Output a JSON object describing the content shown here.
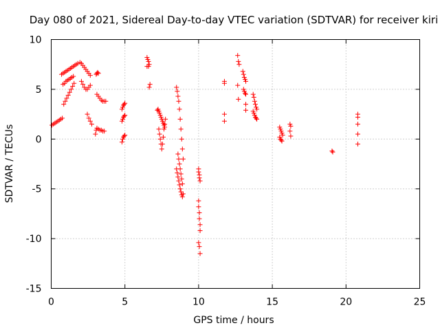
{
  "chart_data": {
    "type": "scatter",
    "title": "Day 080 of 2021, Sidereal Day-to-day VTEC variation (SDTVAR) for receiver kiri",
    "xlabel": "GPS time / hours",
    "ylabel": "SDTVAR / TECUs",
    "xlim": [
      0,
      25
    ],
    "ylim": [
      -15,
      10
    ],
    "xticks": [
      "0",
      "5",
      "10",
      "15",
      "20",
      "25"
    ],
    "yticks": [
      "10",
      "5",
      "0",
      "-5",
      "-10",
      "-15"
    ],
    "grid": true,
    "marker": "+",
    "series_color": "#ff0000",
    "series": [
      {
        "name": "SDTVAR",
        "x": [
          0.05,
          0.15,
          0.25,
          0.35,
          0.45,
          0.55,
          0.65,
          0.75,
          0.85,
          0.95,
          1.05,
          1.15,
          1.25,
          1.35,
          1.45,
          1.55,
          0.8,
          0.9,
          1.0,
          1.1,
          1.2,
          1.3,
          1.4,
          1.5,
          0.7,
          0.8,
          0.9,
          1.0,
          1.1,
          1.2,
          1.3,
          1.4,
          1.5,
          1.6,
          1.7,
          1.8,
          1.95,
          2.05,
          2.15,
          2.25,
          2.35,
          2.45,
          2.55,
          2.65,
          2.05,
          2.15,
          2.25,
          2.35,
          2.45,
          2.55,
          2.65,
          2.45,
          2.55,
          2.65,
          2.75,
          3.05,
          3.1,
          3.15,
          3.2,
          3.1,
          3.2,
          3.3,
          3.4,
          3.5,
          3.6,
          3.7,
          3.0,
          3.05,
          3.1,
          3.2,
          3.3,
          3.4,
          3.5,
          3.6,
          4.8,
          4.85,
          4.9,
          4.95,
          5.0,
          4.8,
          4.85,
          4.9,
          4.95,
          5.0,
          4.8,
          4.85,
          4.9,
          4.95,
          5.0,
          6.5,
          6.55,
          6.6,
          6.65,
          6.5,
          6.6,
          6.7,
          6.65,
          7.2,
          7.25,
          7.3,
          7.35,
          7.4,
          7.45,
          7.5,
          7.55,
          7.6,
          7.65,
          7.7,
          7.3,
          7.35,
          7.4,
          7.45,
          7.5,
          7.55,
          7.6,
          7.65,
          7.7,
          7.75,
          8.5,
          8.55,
          8.6,
          8.65,
          8.7,
          8.75,
          8.8,
          8.85,
          8.9,
          8.95,
          8.6,
          8.65,
          8.7,
          8.75,
          8.8,
          8.85,
          8.9,
          8.95,
          8.5,
          8.55,
          8.6,
          8.65,
          8.7,
          8.75,
          8.8,
          8.85,
          8.9,
          10.0,
          10.0,
          10.05,
          10.05,
          10.1,
          10.0,
          10.0,
          10.05,
          10.05,
          10.1,
          10.1,
          10.0,
          10.05,
          10.1,
          11.75,
          11.75,
          11.75,
          11.75,
          12.65,
          12.7,
          12.75,
          12.65,
          12.7,
          13.0,
          13.05,
          13.1,
          13.15,
          13.2,
          13.05,
          13.1,
          13.15,
          13.2,
          13.2,
          13.2,
          13.7,
          13.75,
          13.8,
          13.85,
          13.9,
          13.95,
          13.7,
          13.75,
          13.8,
          13.85,
          13.9,
          13.95,
          15.5,
          15.55,
          15.6,
          15.65,
          15.7,
          15.5,
          15.55,
          15.6,
          15.65,
          16.2,
          16.25,
          16.2,
          16.25,
          19.05,
          19.1,
          20.8,
          20.8,
          20.8,
          20.8,
          20.8
        ],
        "y": [
          1.4,
          1.5,
          1.6,
          1.7,
          1.8,
          1.9,
          2.0,
          2.1,
          3.5,
          3.8,
          4.1,
          4.4,
          4.7,
          5.0,
          5.3,
          5.6,
          5.5,
          5.6,
          5.8,
          5.9,
          6.0,
          6.1,
          6.2,
          6.3,
          6.5,
          6.6,
          6.7,
          6.8,
          6.9,
          7.0,
          7.1,
          7.2,
          7.3,
          7.4,
          7.5,
          7.6,
          7.7,
          7.6,
          7.4,
          7.2,
          7.0,
          6.8,
          6.6,
          6.4,
          5.8,
          5.5,
          5.2,
          5.0,
          5.0,
          5.2,
          5.4,
          2.5,
          2.1,
          1.8,
          1.5,
          6.5,
          6.6,
          6.7,
          6.6,
          4.5,
          4.3,
          4.1,
          3.9,
          3.8,
          3.8,
          3.8,
          0.5,
          0.9,
          1.1,
          1.0,
          0.9,
          0.9,
          0.8,
          0.8,
          3.0,
          3.2,
          3.4,
          3.5,
          3.6,
          1.8,
          2.0,
          2.2,
          2.3,
          2.4,
          -0.3,
          0.0,
          0.2,
          0.3,
          0.4,
          8.2,
          8.0,
          7.8,
          7.5,
          7.3,
          7.3,
          5.5,
          5.2,
          2.9,
          3.0,
          2.8,
          2.6,
          2.4,
          2.2,
          2.0,
          1.8,
          1.6,
          1.4,
          1.2,
          1.0,
          0.5,
          0.0,
          -0.5,
          -1.0,
          -0.5,
          0.2,
          1.0,
          1.5,
          2.0,
          5.2,
          4.8,
          4.3,
          3.8,
          3.0,
          2.0,
          1.0,
          0.0,
          -1.0,
          -2.0,
          -1.5,
          -2.0,
          -2.5,
          -3.0,
          -3.5,
          -4.0,
          -4.5,
          -5.5,
          -3.0,
          -3.4,
          -3.8,
          -4.2,
          -4.6,
          -5.0,
          -5.3,
          -5.6,
          -5.8,
          -3.0,
          -3.3,
          -3.6,
          -3.9,
          -4.2,
          -6.2,
          -6.8,
          -7.4,
          -8.0,
          -8.6,
          -9.2,
          -10.4,
          -10.8,
          -11.5,
          5.8,
          5.6,
          2.5,
          1.8,
          8.4,
          7.8,
          7.5,
          5.4,
          4.0,
          6.8,
          6.5,
          6.2,
          6.0,
          5.8,
          5.0,
          4.8,
          4.6,
          4.5,
          3.5,
          2.9,
          4.5,
          4.2,
          3.8,
          3.5,
          3.2,
          3.0,
          2.8,
          2.6,
          2.4,
          2.2,
          2.1,
          2.0,
          1.2,
          1.0,
          0.8,
          0.6,
          0.4,
          0.2,
          0.0,
          -0.1,
          -0.2,
          1.5,
          1.3,
          0.8,
          0.3,
          -1.2,
          -1.3,
          2.5,
          2.2,
          1.5,
          0.5,
          -0.5
        ]
      }
    ]
  }
}
